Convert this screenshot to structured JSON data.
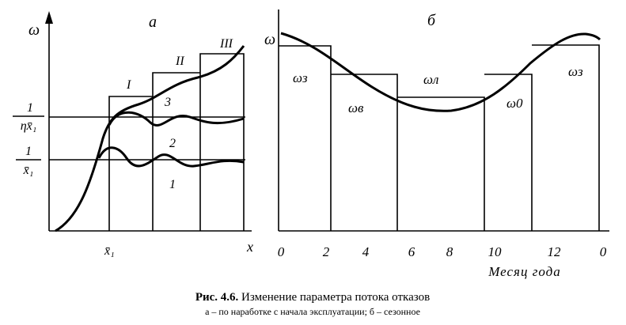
{
  "panel_a": {
    "letter": "а",
    "y_axis_label": "ω",
    "x_axis_label": "x",
    "x_mark_label": "x̄₁",
    "level_labels": [
      {
        "numerator": "1",
        "denominator": "ηx̄₁"
      },
      {
        "numerator": "1",
        "denominator": "x̄₁"
      }
    ],
    "interval_labels": [
      "I",
      "II",
      "III"
    ],
    "curve_labels": [
      "3",
      "2",
      "1"
    ]
  },
  "panel_b": {
    "letter": "б",
    "y_axis_label": "ω",
    "season_labels": [
      "ωз",
      "ωв",
      "ωл",
      "ω0",
      "ωз"
    ],
    "month_ticks": [
      "0",
      "2",
      "4",
      "6",
      "8",
      "10",
      "12",
      "0"
    ],
    "x_axis_label": "Месяц года"
  },
  "caption": {
    "label": "Рис. 4.6.",
    "title": "Изменение параметра потока отказов",
    "subtitle": "а – по наработке с начала эксплуатации; б – сезонное"
  }
}
